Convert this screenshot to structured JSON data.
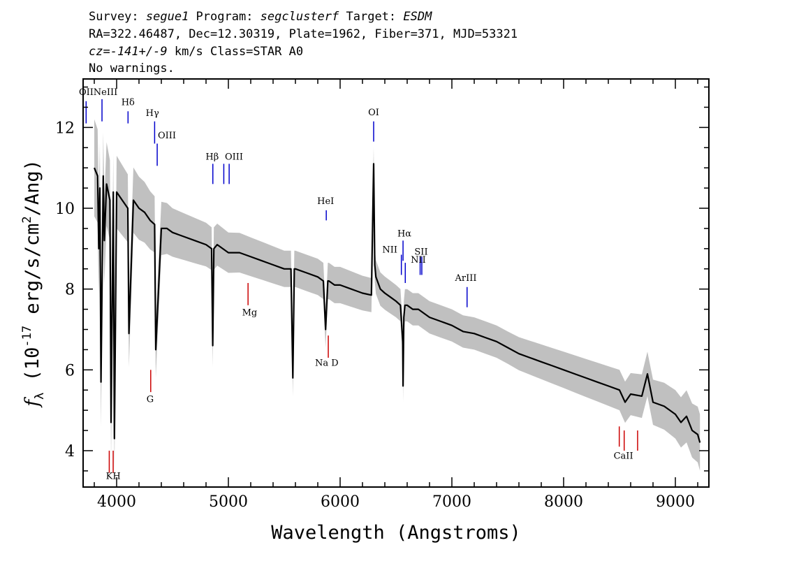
{
  "header": {
    "line1": [
      {
        "text": "Survey: ",
        "italic": false
      },
      {
        "text": "segue1",
        "italic": true
      },
      {
        "text": " Program: ",
        "italic": false
      },
      {
        "text": "segclusterf",
        "italic": true
      },
      {
        "text": " Target: ",
        "italic": false
      },
      {
        "text": "ESDM",
        "italic": true
      }
    ],
    "line2": "RA=322.46487, Dec=12.30319, Plate=1962, Fiber=371, MJD=53321",
    "line3": [
      {
        "text": "cz=-141+/-9",
        "italic": true
      },
      {
        "text": " km/s Class=STAR A0",
        "italic": false
      }
    ],
    "line4": "No warnings."
  },
  "colors": {
    "flux": "#000000",
    "error_band": "#c0c0c0",
    "emission_marker": "#0000cc",
    "absorption_marker": "#cc0000"
  },
  "chart_data": {
    "type": "line",
    "xlabel": "Wavelength (Angstroms)",
    "ylabel": "f_λ (10^-17 erg/s/cm²/Ang)",
    "xlim": [
      3700,
      9300
    ],
    "ylim": [
      3.1,
      13.2
    ],
    "xticks": [
      4000,
      5000,
      6000,
      7000,
      8000,
      9000
    ],
    "yticks": [
      4,
      6,
      8,
      10,
      12
    ],
    "series": [
      {
        "role": "flux",
        "x": [
          3800,
          3830,
          3840,
          3850,
          3860,
          3880,
          3890,
          3910,
          3940,
          3950,
          3970,
          3980,
          4000,
          4050,
          4100,
          4110,
          4150,
          4200,
          4250,
          4300,
          4340,
          4350,
          4400,
          4450,
          4500,
          4600,
          4700,
          4800,
          4850,
          4860,
          4870,
          4900,
          5000,
          5100,
          5200,
          5300,
          5400,
          5500,
          5560,
          5577,
          5590,
          5600,
          5700,
          5800,
          5850,
          5870,
          5890,
          5900,
          5950,
          6000,
          6100,
          6200,
          6280,
          6300,
          6310,
          6320,
          6360,
          6400,
          6450,
          6500,
          6540,
          6560,
          6563,
          6570,
          6580,
          6600,
          6650,
          6700,
          6750,
          6800,
          6900,
          7000,
          7100,
          7200,
          7300,
          7400,
          7500,
          7600,
          7700,
          7800,
          7900,
          8000,
          8100,
          8200,
          8300,
          8400,
          8500,
          8550,
          8600,
          8700,
          8750,
          8800,
          8900,
          9000,
          9050,
          9100,
          9150,
          9200,
          9220
        ],
        "y": [
          11.0,
          10.8,
          9.0,
          10.5,
          5.7,
          10.8,
          9.2,
          10.6,
          10.2,
          4.7,
          10.4,
          4.3,
          10.4,
          10.2,
          10.0,
          6.9,
          10.2,
          10.0,
          9.9,
          9.7,
          9.6,
          6.5,
          9.5,
          9.5,
          9.4,
          9.3,
          9.2,
          9.1,
          9.0,
          6.6,
          9.0,
          9.1,
          8.9,
          8.9,
          8.8,
          8.7,
          8.6,
          8.5,
          8.5,
          5.8,
          8.5,
          8.5,
          8.4,
          8.3,
          8.2,
          7.0,
          8.2,
          8.2,
          8.1,
          8.1,
          8.0,
          7.9,
          7.85,
          11.1,
          8.6,
          8.3,
          8.0,
          7.9,
          7.8,
          7.7,
          7.6,
          6.7,
          5.6,
          7.3,
          7.6,
          7.6,
          7.5,
          7.5,
          7.4,
          7.3,
          7.2,
          7.1,
          6.95,
          6.9,
          6.8,
          6.7,
          6.55,
          6.4,
          6.3,
          6.2,
          6.1,
          6.0,
          5.9,
          5.8,
          5.7,
          5.6,
          5.5,
          5.2,
          5.4,
          5.35,
          5.9,
          5.2,
          5.1,
          4.9,
          4.7,
          4.85,
          4.5,
          4.4,
          4.2
        ]
      },
      {
        "role": "error_band",
        "x": [
          3800,
          4000,
          4500,
          5000,
          5500,
          6000,
          6500,
          7000,
          7500,
          8000,
          8500,
          9000,
          9220
        ],
        "halfwidth": [
          1.2,
          0.9,
          0.6,
          0.5,
          0.45,
          0.45,
          0.4,
          0.4,
          0.4,
          0.45,
          0.5,
          0.6,
          0.7
        ]
      }
    ],
    "line_markers": [
      {
        "label": "OII",
        "wavelength": 3727,
        "kind": "emission",
        "y_top": 12.65,
        "y_bottom": 12.1
      },
      {
        "label": "NeIII",
        "wavelength": 3869,
        "kind": "emission",
        "y_top": 12.7,
        "y_bottom": 12.15
      },
      {
        "label": "Hδ",
        "wavelength": 4102,
        "kind": "emission",
        "y_top": 12.4,
        "y_bottom": 12.1
      },
      {
        "label": "Hγ",
        "wavelength": 4340,
        "kind": "emission",
        "y_top": 12.15,
        "y_bottom": 11.6
      },
      {
        "label": "OIII",
        "wavelength": 4363,
        "kind": "emission",
        "y_top": 11.6,
        "y_bottom": 11.05
      },
      {
        "label": "Hβ",
        "wavelength": 4861,
        "kind": "emission",
        "y_top": 11.1,
        "y_bottom": 10.6
      },
      {
        "label": "OIII",
        "wavelength": 4959,
        "kind": "emission",
        "y_top": 11.1,
        "y_bottom": 10.6
      },
      {
        "label": "OIII",
        "wavelength": 5007,
        "kind": "emission",
        "y_top": 11.1,
        "y_bottom": 10.6
      },
      {
        "label": "HeI",
        "wavelength": 5876,
        "kind": "emission",
        "y_top": 9.95,
        "y_bottom": 9.7
      },
      {
        "label": "OI",
        "wavelength": 6300,
        "kind": "emission",
        "y_top": 12.15,
        "y_bottom": 11.65
      },
      {
        "label": "NII",
        "wavelength": 6548,
        "kind": "emission",
        "y_top": 8.85,
        "y_bottom": 8.35
      },
      {
        "label": "Hα",
        "wavelength": 6563,
        "kind": "emission",
        "y_top": 9.2,
        "y_bottom": 8.7
      },
      {
        "label": "NII",
        "wavelength": 6583,
        "kind": "emission",
        "y_top": 8.65,
        "y_bottom": 8.15
      },
      {
        "label": "SII",
        "wavelength": 6716,
        "kind": "emission",
        "y_top": 8.8,
        "y_bottom": 8.35
      },
      {
        "label": "SII",
        "wavelength": 6731,
        "kind": "emission",
        "y_top": 8.8,
        "y_bottom": 8.35
      },
      {
        "label": "ArIII",
        "wavelength": 7136,
        "kind": "emission",
        "y_top": 8.05,
        "y_bottom": 7.55
      },
      {
        "label": "K",
        "wavelength": 3934,
        "kind": "absorption",
        "y_top": 4.0,
        "y_bottom": 3.45
      },
      {
        "label": "H",
        "wavelength": 3969,
        "kind": "absorption",
        "y_top": 4.0,
        "y_bottom": 3.45
      },
      {
        "label": "G",
        "wavelength": 4305,
        "kind": "absorption",
        "y_top": 6.0,
        "y_bottom": 5.45
      },
      {
        "label": "Mg",
        "wavelength": 5176,
        "kind": "absorption",
        "y_top": 8.15,
        "y_bottom": 7.6
      },
      {
        "label": "Na D",
        "wavelength": 5894,
        "kind": "absorption",
        "y_top": 6.85,
        "y_bottom": 6.3
      },
      {
        "label": "CaII",
        "wavelength": 8498,
        "kind": "absorption",
        "y_top": 4.6,
        "y_bottom": 4.1
      },
      {
        "label": "CaII",
        "wavelength": 8542,
        "kind": "absorption",
        "y_top": 4.5,
        "y_bottom": 4.0
      },
      {
        "label": "CaII",
        "wavelength": 8662,
        "kind": "absorption",
        "y_top": 4.5,
        "y_bottom": 4.0
      }
    ],
    "line_labels": [
      {
        "text": "OII",
        "x": 3728,
        "y": 12.8,
        "anchor": "middle"
      },
      {
        "text": "NeIII",
        "x": 3900,
        "y": 12.8,
        "anchor": "middle"
      },
      {
        "text": "Hδ",
        "x": 4102,
        "y": 12.55,
        "anchor": "middle"
      },
      {
        "text": "Hγ",
        "x": 4320,
        "y": 12.28,
        "anchor": "middle"
      },
      {
        "text": "OIII",
        "x": 4450,
        "y": 11.73,
        "anchor": "middle"
      },
      {
        "text": "Hβ",
        "x": 4855,
        "y": 11.2,
        "anchor": "middle"
      },
      {
        "text": "OIII",
        "x": 5050,
        "y": 11.2,
        "anchor": "middle"
      },
      {
        "text": "HeI",
        "x": 5870,
        "y": 10.1,
        "anchor": "middle"
      },
      {
        "text": "OI",
        "x": 6300,
        "y": 12.3,
        "anchor": "middle"
      },
      {
        "text": "NII",
        "x": 6445,
        "y": 8.9,
        "anchor": "middle"
      },
      {
        "text": "Hα",
        "x": 6575,
        "y": 9.3,
        "anchor": "middle"
      },
      {
        "text": "SII",
        "x": 6725,
        "y": 8.85,
        "anchor": "middle"
      },
      {
        "text": "NII",
        "x": 6700,
        "y": 8.65,
        "anchor": "middle"
      },
      {
        "text": "ArIII",
        "x": 7125,
        "y": 8.2,
        "anchor": "middle"
      },
      {
        "text": "KH",
        "x": 3970,
        "y": 3.3,
        "anchor": "middle"
      },
      {
        "text": "G",
        "x": 4300,
        "y": 5.2,
        "anchor": "middle"
      },
      {
        "text": "Mg",
        "x": 5190,
        "y": 7.35,
        "anchor": "middle"
      },
      {
        "text": "Na D",
        "x": 5880,
        "y": 6.1,
        "anchor": "middle"
      },
      {
        "text": "CaII",
        "x": 8535,
        "y": 3.8,
        "anchor": "middle"
      }
    ]
  }
}
